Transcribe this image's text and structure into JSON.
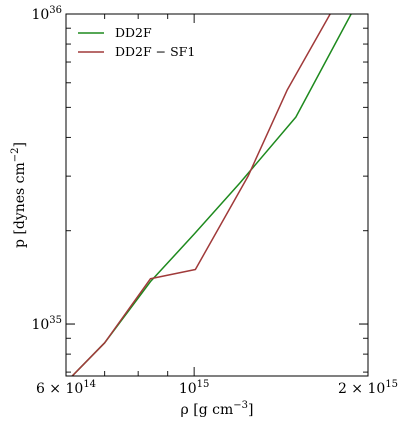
{
  "chart_data": {
    "type": "line",
    "xscale": "log",
    "yscale": "log",
    "xlim": [
      600000000000000.0,
      2000000000000000.0
    ],
    "ylim": [
      6.8e+34,
      1e+36
    ],
    "xlabel": {
      "prefix": "ρ [g cm",
      "exp": "−3",
      "suffix": "]"
    },
    "ylabel": {
      "prefix": "p [dynes cm",
      "exp": "−2",
      "suffix": "]"
    },
    "xticks": [
      {
        "value": 600000000000000.0,
        "mant": "6 × 10",
        "exp": "14"
      },
      {
        "value": 1000000000000000.0,
        "mant": "10",
        "exp": "15"
      },
      {
        "value": 2000000000000000.0,
        "mant": "2 × 10",
        "exp": "15"
      }
    ],
    "yticks": [
      {
        "value": 1e+35,
        "mant": "10",
        "exp": "35"
      },
      {
        "value": 1e+36,
        "mant": "10",
        "exp": "36"
      }
    ],
    "legend": {
      "position": "top-left"
    },
    "grid": false,
    "series": [
      {
        "name": "DD2F",
        "color": "#1e8a1e",
        "x": [
          615000000000000.0,
          700000000000000.0,
          840000000000000.0,
          1000000000000000.0,
          1200000000000000.0,
          1500000000000000.0,
          1870000000000000.0
        ],
        "y": [
          6.8e+34,
          8.7e+34,
          1.37e+35,
          1.95e+35,
          2.85e+35,
          4.65e+35,
          1e+36
        ]
      },
      {
        "name": "DD2F − SF1",
        "color": "#a03a3a",
        "x": [
          615000000000000.0,
          700000000000000.0,
          840000000000000.0,
          1005000000000000.0,
          1240000000000000.0,
          1450000000000000.0,
          1720000000000000.0
        ],
        "y": [
          6.8e+34,
          8.7e+34,
          1.4e+35,
          1.5e+35,
          3e+35,
          5.7e+35,
          1e+36
        ]
      }
    ]
  }
}
